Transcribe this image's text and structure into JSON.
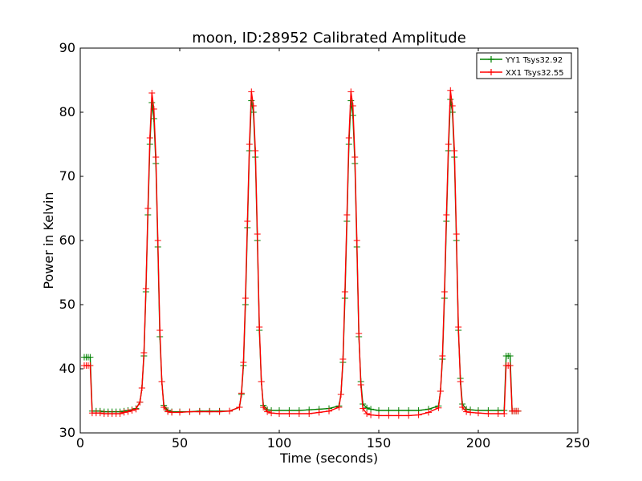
{
  "colors": {
    "yy1": "#008000",
    "xx1": "#ff0000",
    "axis": "#000000",
    "background": "#ffffff"
  },
  "chart_data": {
    "type": "line",
    "title": "moon, ID:28952 Calibrated Amplitude",
    "xlabel": "Time (seconds)",
    "ylabel": "Power in Kelvin",
    "xlim": [
      0,
      250
    ],
    "ylim": [
      30,
      90
    ],
    "xticks": [
      "0",
      "50",
      "100",
      "150",
      "200",
      "250"
    ],
    "yticks": [
      "30",
      "40",
      "50",
      "60",
      "70",
      "80",
      "90"
    ],
    "grid": false,
    "legend_position": "top-right",
    "series": [
      {
        "name": "YY1 Tsys32.92",
        "color": "#008000",
        "points": [
          [
            2,
            41.8
          ],
          [
            3,
            41.8
          ],
          [
            4,
            41.8
          ],
          [
            5,
            41.8
          ],
          [
            6,
            33.4
          ],
          [
            8,
            33.4
          ],
          [
            10,
            33.4
          ],
          [
            12,
            33.3
          ],
          [
            14,
            33.3
          ],
          [
            16,
            33.3
          ],
          [
            18,
            33.3
          ],
          [
            20,
            33.3
          ],
          [
            22,
            33.4
          ],
          [
            24,
            33.5
          ],
          [
            26,
            33.6
          ],
          [
            28,
            33.8
          ],
          [
            30,
            34.8
          ],
          [
            31,
            37.0
          ],
          [
            32,
            42.0
          ],
          [
            33,
            52.0
          ],
          [
            34,
            64.0
          ],
          [
            35,
            75.0
          ],
          [
            36,
            81.5
          ],
          [
            37,
            79.0
          ],
          [
            38,
            72.0
          ],
          [
            39,
            59.0
          ],
          [
            40,
            45.0
          ],
          [
            41,
            38.0
          ],
          [
            42,
            34.3
          ],
          [
            44,
            33.5
          ],
          [
            46,
            33.3
          ],
          [
            50,
            33.3
          ],
          [
            55,
            33.3
          ],
          [
            60,
            33.4
          ],
          [
            65,
            33.4
          ],
          [
            70,
            33.4
          ],
          [
            75,
            33.4
          ],
          [
            80,
            34.0
          ],
          [
            81,
            36.0
          ],
          [
            82,
            40.5
          ],
          [
            83,
            50.0
          ],
          [
            84,
            62.0
          ],
          [
            85,
            74.0
          ],
          [
            86,
            81.8
          ],
          [
            87,
            80.0
          ],
          [
            88,
            73.0
          ],
          [
            89,
            60.0
          ],
          [
            90,
            46.0
          ],
          [
            91,
            38.0
          ],
          [
            92,
            34.3
          ],
          [
            94,
            33.6
          ],
          [
            96,
            33.5
          ],
          [
            100,
            33.5
          ],
          [
            105,
            33.5
          ],
          [
            110,
            33.5
          ],
          [
            115,
            33.6
          ],
          [
            120,
            33.7
          ],
          [
            125,
            33.8
          ],
          [
            130,
            34.2
          ],
          [
            131,
            36.0
          ],
          [
            132,
            41.0
          ],
          [
            133,
            51.0
          ],
          [
            134,
            63.0
          ],
          [
            135,
            75.0
          ],
          [
            136,
            81.8
          ],
          [
            137,
            79.5
          ],
          [
            138,
            72.0
          ],
          [
            139,
            59.0
          ],
          [
            140,
            45.0
          ],
          [
            141,
            38.0
          ],
          [
            142,
            34.5
          ],
          [
            144,
            33.9
          ],
          [
            146,
            33.7
          ],
          [
            150,
            33.5
          ],
          [
            155,
            33.5
          ],
          [
            160,
            33.5
          ],
          [
            165,
            33.5
          ],
          [
            170,
            33.5
          ],
          [
            175,
            33.7
          ],
          [
            180,
            34.2
          ],
          [
            181,
            36.5
          ],
          [
            182,
            41.5
          ],
          [
            183,
            51.0
          ],
          [
            184,
            63.0
          ],
          [
            185,
            74.0
          ],
          [
            186,
            82.0
          ],
          [
            187,
            80.0
          ],
          [
            188,
            73.0
          ],
          [
            189,
            60.0
          ],
          [
            190,
            46.0
          ],
          [
            191,
            38.5
          ],
          [
            192,
            34.5
          ],
          [
            194,
            33.7
          ],
          [
            196,
            33.6
          ],
          [
            200,
            33.5
          ],
          [
            205,
            33.5
          ],
          [
            210,
            33.5
          ],
          [
            213,
            33.5
          ],
          [
            214,
            42.0
          ],
          [
            215,
            42.0
          ],
          [
            216,
            42.0
          ],
          [
            217,
            33.4
          ],
          [
            218,
            33.4
          ],
          [
            219,
            33.4
          ],
          [
            220,
            33.4
          ]
        ]
      },
      {
        "name": "XX1 Tsys32.55",
        "color": "#ff0000",
        "points": [
          [
            2,
            40.5
          ],
          [
            3,
            40.5
          ],
          [
            4,
            40.5
          ],
          [
            5,
            40.5
          ],
          [
            6,
            33.1
          ],
          [
            8,
            33.1
          ],
          [
            10,
            33.1
          ],
          [
            12,
            33.0
          ],
          [
            14,
            33.0
          ],
          [
            16,
            33.0
          ],
          [
            18,
            33.0
          ],
          [
            20,
            33.0
          ],
          [
            22,
            33.2
          ],
          [
            24,
            33.3
          ],
          [
            26,
            33.5
          ],
          [
            28,
            33.7
          ],
          [
            30,
            34.8
          ],
          [
            31,
            37.0
          ],
          [
            32,
            42.5
          ],
          [
            33,
            52.5
          ],
          [
            34,
            65.0
          ],
          [
            35,
            76.0
          ],
          [
            36,
            83.0
          ],
          [
            37,
            80.5
          ],
          [
            38,
            73.0
          ],
          [
            39,
            60.0
          ],
          [
            40,
            46.0
          ],
          [
            41,
            38.0
          ],
          [
            42,
            34.0
          ],
          [
            44,
            33.3
          ],
          [
            46,
            33.2
          ],
          [
            50,
            33.2
          ],
          [
            55,
            33.3
          ],
          [
            60,
            33.3
          ],
          [
            65,
            33.3
          ],
          [
            70,
            33.3
          ],
          [
            75,
            33.4
          ],
          [
            80,
            34.0
          ],
          [
            81,
            36.2
          ],
          [
            82,
            41.0
          ],
          [
            83,
            51.0
          ],
          [
            84,
            63.0
          ],
          [
            85,
            75.0
          ],
          [
            86,
            83.2
          ],
          [
            87,
            81.0
          ],
          [
            88,
            74.0
          ],
          [
            89,
            61.0
          ],
          [
            90,
            46.5
          ],
          [
            91,
            38.0
          ],
          [
            92,
            34.0
          ],
          [
            94,
            33.3
          ],
          [
            96,
            33.1
          ],
          [
            100,
            33.0
          ],
          [
            105,
            33.0
          ],
          [
            110,
            33.0
          ],
          [
            115,
            33.0
          ],
          [
            120,
            33.2
          ],
          [
            125,
            33.4
          ],
          [
            130,
            34.0
          ],
          [
            131,
            36.0
          ],
          [
            132,
            41.5
          ],
          [
            133,
            52.0
          ],
          [
            134,
            64.0
          ],
          [
            135,
            76.0
          ],
          [
            136,
            83.2
          ],
          [
            137,
            81.0
          ],
          [
            138,
            73.0
          ],
          [
            139,
            60.0
          ],
          [
            140,
            45.5
          ],
          [
            141,
            37.5
          ],
          [
            142,
            33.8
          ],
          [
            144,
            33.0
          ],
          [
            146,
            32.8
          ],
          [
            150,
            32.7
          ],
          [
            155,
            32.7
          ],
          [
            160,
            32.7
          ],
          [
            165,
            32.7
          ],
          [
            170,
            32.8
          ],
          [
            175,
            33.2
          ],
          [
            180,
            33.9
          ],
          [
            181,
            36.5
          ],
          [
            182,
            42.0
          ],
          [
            183,
            52.0
          ],
          [
            184,
            64.0
          ],
          [
            185,
            75.0
          ],
          [
            186,
            83.4
          ],
          [
            187,
            81.0
          ],
          [
            188,
            74.0
          ],
          [
            189,
            61.0
          ],
          [
            190,
            46.5
          ],
          [
            191,
            38.0
          ],
          [
            192,
            34.0
          ],
          [
            194,
            33.3
          ],
          [
            196,
            33.2
          ],
          [
            200,
            33.1
          ],
          [
            205,
            33.0
          ],
          [
            210,
            33.0
          ],
          [
            213,
            33.0
          ],
          [
            214,
            40.5
          ],
          [
            215,
            40.5
          ],
          [
            216,
            40.5
          ],
          [
            217,
            33.4
          ],
          [
            218,
            33.4
          ],
          [
            219,
            33.4
          ],
          [
            220,
            33.4
          ]
        ]
      }
    ]
  }
}
